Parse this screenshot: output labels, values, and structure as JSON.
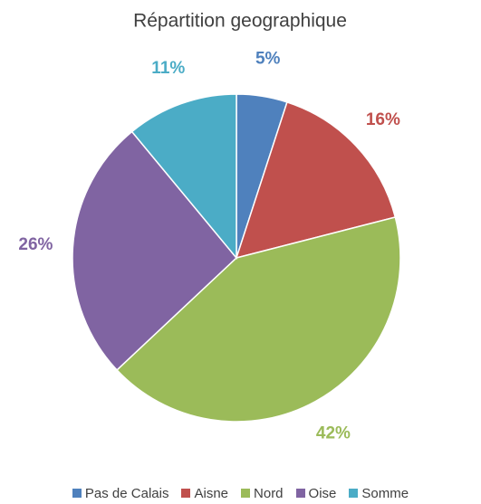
{
  "chart_data": {
    "type": "pie",
    "title": "Répartition geographique",
    "categories": [
      "Pas de Calais",
      "Aisne",
      "Nord",
      "Oise",
      "Somme"
    ],
    "values": [
      5,
      16,
      42,
      26,
      11
    ],
    "value_labels": [
      "5%",
      "16%",
      "42%",
      "26%",
      "11%"
    ],
    "colors": [
      "#4f81bd",
      "#c0504d",
      "#9bbb59",
      "#8064a2",
      "#4bacc6"
    ],
    "legend": "bottom"
  }
}
